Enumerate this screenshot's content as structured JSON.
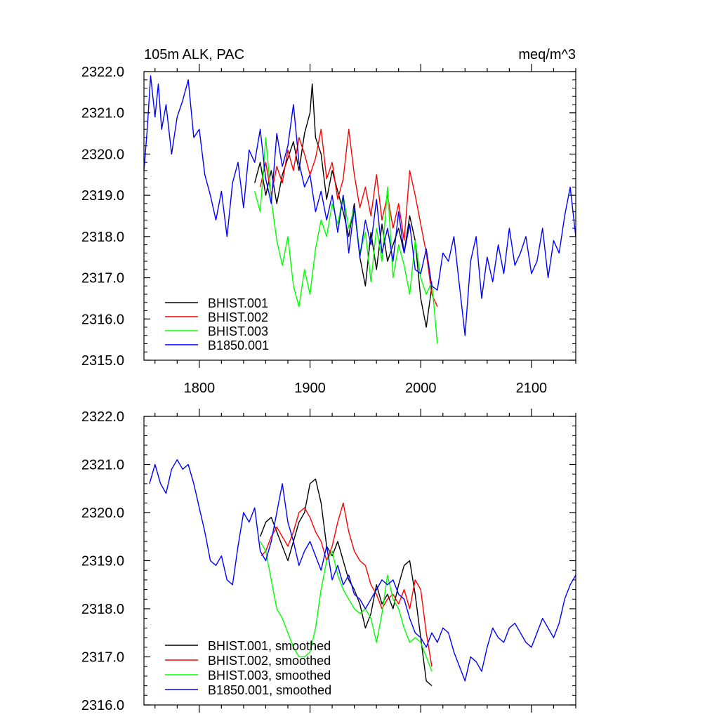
{
  "chart_data": [
    {
      "type": "line",
      "title_left": "105m ALK, PAC",
      "title_right": "meq/m^3",
      "xlim": [
        1750,
        2140
      ],
      "ylim": [
        2315.0,
        2322.0
      ],
      "y_ticks": [
        2315.0,
        2316.0,
        2317.0,
        2318.0,
        2319.0,
        2320.0,
        2321.0,
        2322.0
      ],
      "y_tick_labels": [
        "2315.0",
        "2316.0",
        "2317.0",
        "2318.0",
        "2319.0",
        "2320.0",
        "2321.0",
        "2322.0"
      ],
      "x_ticks": [
        1800,
        1900,
        2000,
        2100
      ],
      "x_tick_labels": [
        "1800",
        "1900",
        "2000",
        "2100"
      ],
      "legend": [
        "BHIST.001",
        "BHIST.002",
        "BHIST.003",
        "B1850.001"
      ],
      "series": [
        {
          "name": "BHIST.001",
          "color": "#000000",
          "x": [
            1850,
            1855,
            1860,
            1865,
            1870,
            1875,
            1880,
            1885,
            1890,
            1895,
            1900,
            1902,
            1905,
            1910,
            1915,
            1920,
            1925,
            1930,
            1935,
            1940,
            1945,
            1950,
            1955,
            1960,
            1965,
            1970,
            1975,
            1980,
            1985,
            1990,
            1995,
            2000,
            2005,
            2010
          ],
          "y": [
            2319.3,
            2319.8,
            2319.0,
            2319.6,
            2318.8,
            2319.5,
            2319.9,
            2320.3,
            2319.6,
            2320.5,
            2321.0,
            2321.7,
            2320.4,
            2320.0,
            2318.9,
            2319.6,
            2319.1,
            2318.6,
            2318.0,
            2318.8,
            2317.5,
            2316.8,
            2318.1,
            2317.2,
            2318.3,
            2317.4,
            2317.8,
            2318.2,
            2317.6,
            2318.5,
            2317.9,
            2316.5,
            2315.8,
            2316.8
          ]
        },
        {
          "name": "BHIST.002",
          "color": "#ff0000",
          "x": [
            1855,
            1860,
            1865,
            1870,
            1875,
            1880,
            1885,
            1890,
            1895,
            1900,
            1905,
            1910,
            1915,
            1920,
            1925,
            1930,
            1935,
            1940,
            1945,
            1950,
            1955,
            1960,
            1965,
            1970,
            1975,
            1980,
            1985,
            1990,
            1995,
            2000,
            2005,
            2010,
            2015
          ],
          "y": [
            2319.2,
            2319.8,
            2319.0,
            2319.7,
            2319.3,
            2320.1,
            2319.6,
            2320.4,
            2320.0,
            2319.5,
            2319.9,
            2320.6,
            2319.4,
            2319.8,
            2318.9,
            2319.4,
            2320.6,
            2319.5,
            2318.7,
            2319.2,
            2318.5,
            2319.5,
            2318.4,
            2319.0,
            2318.2,
            2318.8,
            2317.9,
            2319.6,
            2319.0,
            2318.3,
            2317.6,
            2316.6,
            2316.3
          ]
        },
        {
          "name": "BHIST.003",
          "color": "#00ff00",
          "x": [
            1850,
            1855,
            1860,
            1865,
            1870,
            1875,
            1880,
            1885,
            1890,
            1895,
            1900,
            1905,
            1910,
            1915,
            1920,
            1925,
            1930,
            1935,
            1940,
            1945,
            1950,
            1955,
            1960,
            1965,
            1970,
            1975,
            1980,
            1985,
            1990,
            1995,
            2000,
            2005,
            2010,
            2015
          ],
          "y": [
            2319.1,
            2318.6,
            2320.4,
            2318.9,
            2317.9,
            2317.3,
            2318.0,
            2316.8,
            2316.3,
            2317.2,
            2316.6,
            2317.7,
            2318.4,
            2318.0,
            2318.8,
            2318.3,
            2319.0,
            2318.2,
            2318.7,
            2317.6,
            2318.1,
            2316.9,
            2318.2,
            2317.4,
            2319.2,
            2317.0,
            2317.8,
            2317.3,
            2316.6,
            2317.9,
            2317.0,
            2316.6,
            2316.9,
            2315.4
          ]
        },
        {
          "name": "B1850.001",
          "color": "#0000ff",
          "x": [
            1750,
            1753,
            1756,
            1760,
            1763,
            1766,
            1770,
            1775,
            1780,
            1785,
            1790,
            1795,
            1800,
            1805,
            1810,
            1815,
            1820,
            1825,
            1830,
            1835,
            1840,
            1845,
            1850,
            1855,
            1860,
            1865,
            1870,
            1875,
            1880,
            1885,
            1890,
            1895,
            1900,
            1905,
            1910,
            1915,
            1920,
            1925,
            1930,
            1935,
            1940,
            1945,
            1950,
            1955,
            1960,
            1965,
            1970,
            1975,
            1980,
            1985,
            1990,
            1995,
            2000,
            2005,
            2010,
            2015,
            2020,
            2025,
            2030,
            2035,
            2040,
            2045,
            2050,
            2055,
            2060,
            2065,
            2070,
            2075,
            2080,
            2085,
            2090,
            2095,
            2100,
            2105,
            2110,
            2115,
            2120,
            2125,
            2130,
            2135,
            2140
          ],
          "y": [
            2319.6,
            2320.6,
            2321.9,
            2320.9,
            2321.7,
            2320.6,
            2321.2,
            2320.0,
            2320.9,
            2321.3,
            2321.8,
            2320.4,
            2320.6,
            2319.5,
            2319.0,
            2318.4,
            2319.1,
            2318.0,
            2319.3,
            2319.8,
            2318.7,
            2320.1,
            2319.8,
            2320.6,
            2319.4,
            2318.8,
            2320.5,
            2319.7,
            2320.2,
            2321.2,
            2319.8,
            2319.2,
            2319.5,
            2318.6,
            2319.1,
            2318.4,
            2319.0,
            2318.1,
            2319.0,
            2317.6,
            2318.7,
            2317.5,
            2318.4,
            2317.8,
            2318.9,
            2317.6,
            2318.2,
            2317.4,
            2318.6,
            2317.6,
            2318.3,
            2317.2,
            2317.1,
            2317.7,
            2316.8,
            2316.7,
            2317.6,
            2317.4,
            2318.0,
            2316.8,
            2315.6,
            2317.4,
            2318.0,
            2316.5,
            2317.5,
            2316.9,
            2317.8,
            2317.1,
            2318.2,
            2317.3,
            2317.6,
            2318.0,
            2317.1,
            2317.4,
            2318.2,
            2317.0,
            2317.9,
            2317.6,
            2318.5,
            2319.2,
            2318.0
          ]
        }
      ]
    },
    {
      "type": "line",
      "xlim": [
        1750,
        2140
      ],
      "ylim": [
        2316.0,
        2322.0
      ],
      "y_ticks": [
        2316.0,
        2317.0,
        2318.0,
        2319.0,
        2320.0,
        2321.0,
        2322.0
      ],
      "y_tick_labels": [
        "2316.0",
        "2317.0",
        "2318.0",
        "2319.0",
        "2320.0",
        "2321.0",
        "2322.0"
      ],
      "x_ticks": [
        1800,
        1900,
        2000,
        2100
      ],
      "legend": [
        "BHIST.001, smoothed",
        "BHIST.002, smoothed",
        "BHIST.003, smoothed",
        "B1850.001, smoothed"
      ],
      "series": [
        {
          "name": "BHIST.001, smoothed",
          "color": "#000000",
          "x": [
            1855,
            1860,
            1865,
            1870,
            1875,
            1880,
            1885,
            1890,
            1895,
            1900,
            1905,
            1910,
            1915,
            1920,
            1925,
            1930,
            1935,
            1940,
            1945,
            1950,
            1955,
            1960,
            1965,
            1970,
            1975,
            1980,
            1985,
            1990,
            1995,
            2000,
            2005,
            2010
          ],
          "y": [
            2319.5,
            2319.8,
            2319.9,
            2319.6,
            2319.3,
            2319.0,
            2319.4,
            2319.8,
            2320.0,
            2320.6,
            2320.7,
            2320.2,
            2319.3,
            2319.1,
            2319.4,
            2319.0,
            2318.6,
            2318.4,
            2318.1,
            2317.6,
            2317.9,
            2318.5,
            2318.1,
            2318.3,
            2318.0,
            2318.5,
            2318.9,
            2319.0,
            2318.3,
            2317.4,
            2316.5,
            2316.4
          ]
        },
        {
          "name": "BHIST.002, smoothed",
          "color": "#ff0000",
          "x": [
            1856,
            1860,
            1865,
            1870,
            1875,
            1880,
            1885,
            1890,
            1895,
            1900,
            1905,
            1910,
            1915,
            1920,
            1925,
            1930,
            1935,
            1940,
            1945,
            1950,
            1955,
            1960,
            1965,
            1970,
            1975,
            1980,
            1985,
            1990,
            1995,
            2000,
            2005,
            2010
          ],
          "y": [
            2319.1,
            2319.2,
            2319.5,
            2319.7,
            2319.5,
            2319.3,
            2319.6,
            2320.0,
            2320.1,
            2319.9,
            2319.6,
            2319.4,
            2319.0,
            2319.3,
            2319.8,
            2320.2,
            2319.6,
            2319.2,
            2319.0,
            2318.9,
            2318.5,
            2318.3,
            2318.0,
            2318.2,
            2318.3,
            2318.1,
            2318.4,
            2318.0,
            2318.6,
            2318.4,
            2317.5,
            2316.8
          ]
        },
        {
          "name": "BHIST.003, smoothed",
          "color": "#00ff00",
          "x": [
            1855,
            1860,
            1865,
            1870,
            1875,
            1880,
            1885,
            1890,
            1895,
            1900,
            1905,
            1910,
            1915,
            1920,
            1925,
            1930,
            1935,
            1940,
            1945,
            1950,
            1955,
            1960,
            1965,
            1970,
            1975,
            1980,
            1985,
            1990,
            1995,
            2000,
            2005,
            2010
          ],
          "y": [
            2319.4,
            2319.2,
            2318.6,
            2318.0,
            2317.8,
            2317.5,
            2317.2,
            2317.0,
            2317.0,
            2317.1,
            2317.6,
            2318.4,
            2319.0,
            2319.2,
            2318.7,
            2318.4,
            2318.2,
            2318.0,
            2317.9,
            2318.0,
            2317.8,
            2317.3,
            2317.9,
            2318.7,
            2318.2,
            2318.0,
            2317.6,
            2317.3,
            2317.4,
            2317.3,
            2317.0,
            2316.7
          ]
        },
        {
          "name": "B1850.001, smoothed",
          "color": "#0000ff",
          "x": [
            1755,
            1760,
            1765,
            1770,
            1775,
            1780,
            1785,
            1790,
            1795,
            1800,
            1805,
            1810,
            1815,
            1820,
            1825,
            1830,
            1835,
            1840,
            1845,
            1850,
            1855,
            1860,
            1865,
            1870,
            1875,
            1880,
            1885,
            1890,
            1895,
            1900,
            1905,
            1910,
            1915,
            1920,
            1925,
            1930,
            1935,
            1940,
            1945,
            1950,
            1955,
            1960,
            1965,
            1970,
            1975,
            1980,
            1985,
            1990,
            1995,
            2000,
            2005,
            2010,
            2015,
            2020,
            2025,
            2030,
            2035,
            2040,
            2045,
            2050,
            2055,
            2060,
            2065,
            2070,
            2075,
            2080,
            2085,
            2090,
            2095,
            2100,
            2105,
            2110,
            2115,
            2120,
            2125,
            2130,
            2135,
            2140
          ],
          "y": [
            2320.6,
            2321.0,
            2320.6,
            2320.4,
            2320.9,
            2321.1,
            2320.9,
            2321.0,
            2320.6,
            2320.1,
            2319.6,
            2319.0,
            2318.9,
            2319.1,
            2318.6,
            2318.5,
            2319.3,
            2320.0,
            2319.8,
            2320.1,
            2319.2,
            2319.0,
            2319.4,
            2320.0,
            2320.6,
            2319.8,
            2319.4,
            2318.9,
            2319.2,
            2319.4,
            2319.1,
            2318.8,
            2319.3,
            2318.6,
            2318.9,
            2318.5,
            2318.7,
            2318.3,
            2318.2,
            2318.0,
            2318.2,
            2318.4,
            2318.6,
            2318.5,
            2318.6,
            2318.3,
            2318.2,
            2317.8,
            2317.5,
            2317.4,
            2317.2,
            2317.5,
            2317.3,
            2317.6,
            2317.5,
            2317.1,
            2316.8,
            2316.5,
            2317.0,
            2316.9,
            2316.7,
            2317.2,
            2317.6,
            2317.4,
            2317.3,
            2317.6,
            2317.7,
            2317.5,
            2317.3,
            2317.2,
            2317.5,
            2317.8,
            2317.6,
            2317.4,
            2317.7,
            2318.2,
            2318.5,
            2318.7
          ]
        }
      ]
    }
  ]
}
